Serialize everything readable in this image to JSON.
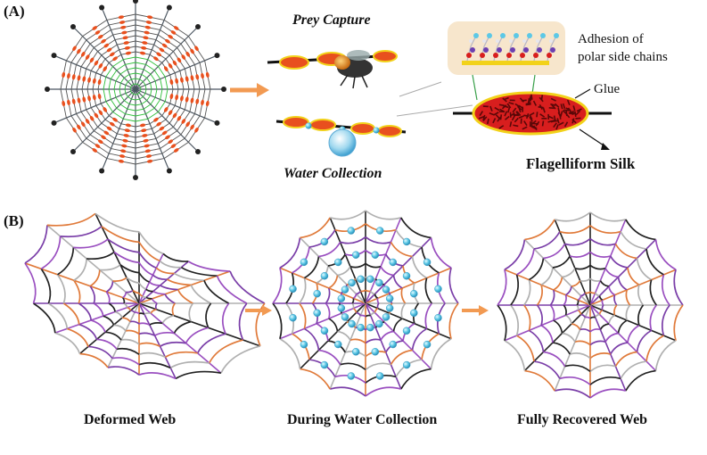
{
  "panel_a": {
    "label": "(A)",
    "prey_capture": "Prey Capture",
    "water_collection": "Water Collection",
    "adhesion_line1": "Adhesion of",
    "adhesion_line2": "polar side chains",
    "glue": "Glue",
    "flagelliform_silk": "Flagelliform Silk"
  },
  "panel_b": {
    "label": "(B)",
    "deformed_web": "Deformed Web",
    "during_water_collection": "During Water Collection",
    "fully_recovered_web": "Fully Recovered Web"
  },
  "colors": {
    "radial": "#4a5560",
    "spiral_green": "#2fbf3a",
    "glue_drop": "#e8501e",
    "glue_outline": "#f2d21a",
    "arrow": "#f29a52",
    "water_bead": "#5cc8e6",
    "web_purple": "#7a3ea8",
    "web_orange": "#e07a3a"
  }
}
